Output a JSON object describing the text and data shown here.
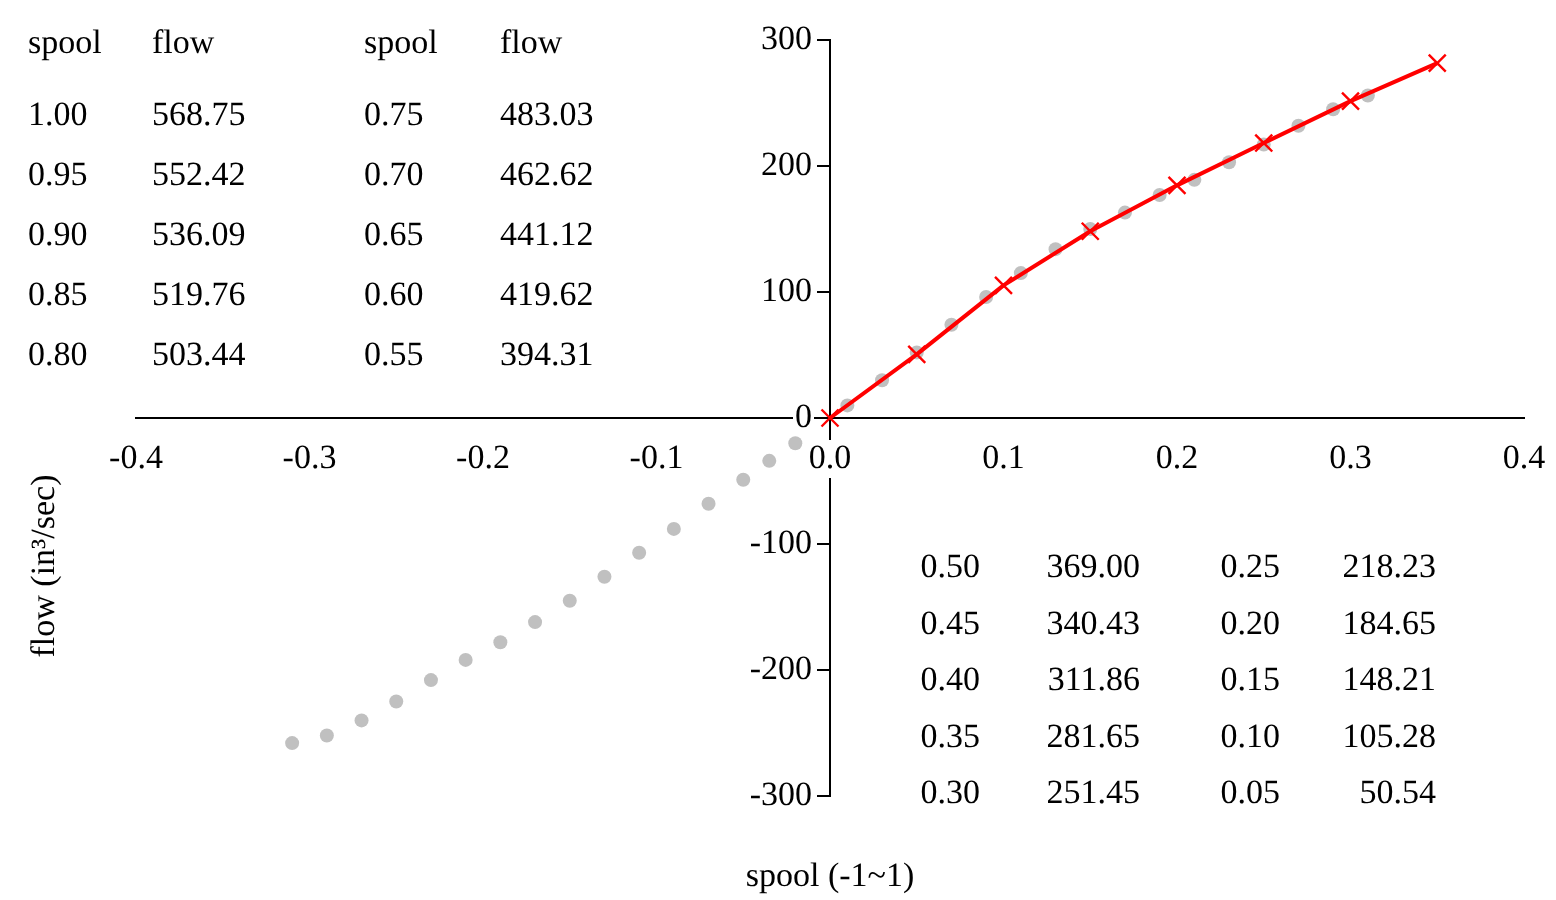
{
  "chart_data": {
    "type": "scatter",
    "xlabel": "spool (-1~1)",
    "ylabel": "flow (in³/sec)",
    "xlim": [
      -0.4,
      0.4
    ],
    "xticks": [
      -0.4,
      -0.3,
      -0.2,
      -0.1,
      {
        "value": 0,
        "label": "0.0"
      },
      0.1,
      0.2,
      0.3,
      0.4
    ],
    "ylim": [
      -300,
      300
    ],
    "yticks": [
      -300,
      -200,
      -100,
      0,
      100,
      200,
      300
    ],
    "grid": false,
    "legend": false,
    "marker": "circle",
    "series": [
      {
        "color": "#c0c0c0",
        "x": [
          -0.31,
          -0.29,
          -0.27,
          -0.25,
          -0.23,
          -0.21,
          -0.19,
          -0.17,
          -0.15,
          -0.13,
          -0.11,
          -0.09,
          -0.07,
          -0.05,
          -0.035,
          -0.02,
          0.01,
          0.03,
          0.05,
          0.07,
          0.09,
          0.11,
          0.13,
          0.15,
          0.17,
          0.19,
          0.21,
          0.23,
          0.25,
          0.27,
          0.29,
          0.31
        ],
        "values": [
          -258,
          -252,
          -240,
          -225,
          -208,
          -192,
          -178,
          -162,
          -145,
          -126,
          -107,
          -88,
          -68,
          -49,
          -34,
          -20,
          10,
          30,
          52,
          74,
          96,
          115,
          134,
          150,
          163,
          177,
          189,
          203,
          217,
          232,
          245,
          256
        ]
      },
      {
        "type": "line",
        "color": "#ff0000",
        "marker": "cross",
        "x": [
          0,
          0.05,
          0.1,
          0.15,
          0.2,
          0.25,
          0.3,
          0.35
        ],
        "values": [
          0,
          50.54,
          105.28,
          148.21,
          184.65,
          218.23,
          251.45,
          281.65
        ]
      }
    ],
    "annotations": [
      "spool",
      "flow",
      "spool",
      "flow",
      "1.00",
      "568.75",
      "0.75",
      "483.03",
      "0.95",
      "552.42",
      "0.70",
      "462.62",
      "0.90",
      "536.09",
      "0.65",
      "441.12",
      "0.85",
      "519.76",
      "0.60",
      "419.62",
      "0.80",
      "503.44",
      "0.55",
      "394.31",
      "0.50",
      "369.00",
      "0.25",
      "218.23",
      "0.45",
      "340.43",
      "0.20",
      "184.65",
      "0.40",
      "311.86",
      "0.15",
      "148.21",
      "0.35",
      "281.65",
      "0.10",
      "105.28",
      "0.30",
      "251.45",
      "0.05",
      "50.54"
    ]
  }
}
